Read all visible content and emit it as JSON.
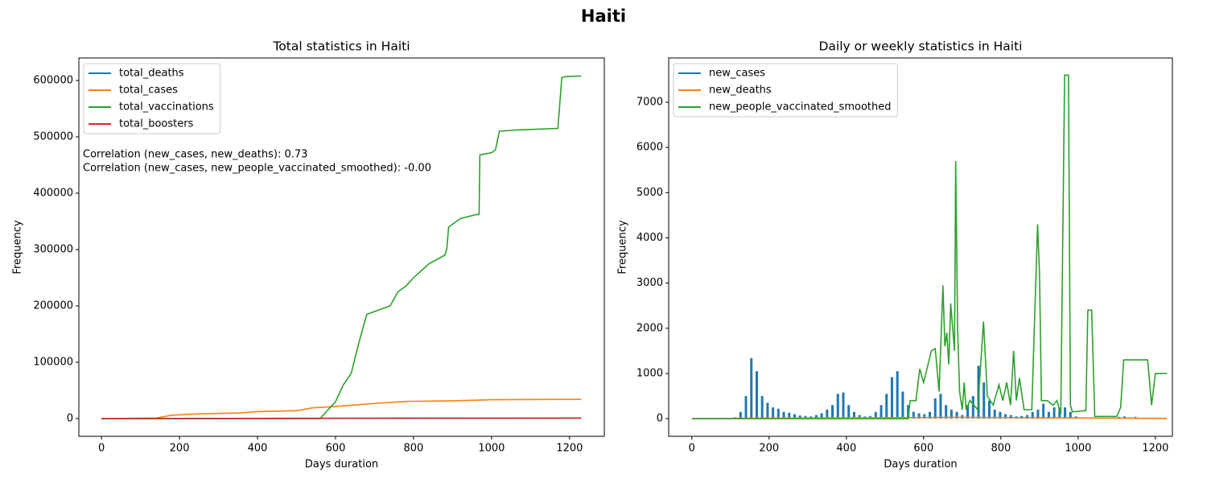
{
  "title": "Haiti",
  "chart_data": [
    {
      "type": "line",
      "title": "Total statistics in Haiti",
      "x_label": "Days duration",
      "y_label": "Frequency",
      "xlim": [
        -58,
        1289
      ],
      "ylim": [
        -31400,
        640000
      ],
      "xticks": [
        0,
        200,
        400,
        600,
        800,
        1000,
        1200
      ],
      "yticks": [
        0,
        100000,
        200000,
        300000,
        400000,
        500000,
        600000
      ],
      "grid": false,
      "legend": "upper-left",
      "annotations": [
        "Correlation (new_cases, new_deaths): 0.73",
        "Correlation (new_cases, new_people_vaccinated_smoothed): -0.00"
      ],
      "series": [
        {
          "name": "total_deaths",
          "color": "#1f77b4",
          "x": [
            0,
            200,
            600,
            800,
            1230
          ],
          "values": [
            0,
            200,
            500,
            780,
            860
          ]
        },
        {
          "name": "total_cases",
          "color": "#ff7f0e",
          "x": [
            0,
            140,
            180,
            250,
            350,
            400,
            500,
            540,
            600,
            700,
            780,
            900,
            1000,
            1230
          ],
          "values": [
            0,
            1000,
            6000,
            8500,
            10000,
            12500,
            14000,
            19000,
            21500,
            27000,
            30500,
            31500,
            33500,
            34200
          ]
        },
        {
          "name": "total_vaccinations",
          "color": "#2ca02c",
          "x": [
            0,
            560,
            580,
            600,
            620,
            640,
            660,
            670,
            680,
            720,
            740,
            760,
            780,
            800,
            840,
            880,
            885,
            890,
            920,
            960,
            968,
            970,
            1000,
            1010,
            1020,
            1060,
            1170,
            1180,
            1190,
            1230
          ],
          "values": [
            0,
            0,
            15000,
            30000,
            60000,
            80000,
            135000,
            160000,
            185000,
            195000,
            200000,
            225000,
            235000,
            250000,
            275000,
            290000,
            300000,
            340000,
            355000,
            362000,
            362000,
            468000,
            472000,
            477000,
            510000,
            512000,
            515000,
            605000,
            607000,
            608000
          ]
        },
        {
          "name": "total_boosters",
          "color": "#d62728",
          "x": [
            0,
            1230
          ],
          "values": [
            0,
            1000
          ]
        }
      ]
    },
    {
      "type": "line",
      "title": "Daily or weekly statistics in Haiti",
      "x_label": "Days duration",
      "y_label": "Frequency",
      "xlim": [
        -60,
        1244
      ],
      "ylim": [
        -390,
        7980
      ],
      "xticks": [
        0,
        200,
        400,
        600,
        800,
        1000,
        1200
      ],
      "yticks": [
        0,
        1000,
        2000,
        3000,
        4000,
        5000,
        6000,
        7000
      ],
      "grid": false,
      "legend": "upper-left",
      "series": [
        {
          "name": "new_cases",
          "color": "#1f77b4",
          "style": "spikes",
          "x": [
            112,
            126,
            140,
            154,
            168,
            182,
            196,
            210,
            224,
            238,
            252,
            266,
            280,
            294,
            308,
            322,
            336,
            350,
            364,
            378,
            392,
            406,
            420,
            434,
            448,
            462,
            476,
            490,
            504,
            518,
            532,
            546,
            560,
            574,
            588,
            602,
            616,
            630,
            644,
            658,
            672,
            686,
            700,
            714,
            728,
            742,
            756,
            770,
            784,
            798,
            812,
            826,
            840,
            854,
            868,
            882,
            896,
            910,
            924,
            938,
            952,
            966,
            980,
            994,
            1008,
            1022,
            1036,
            1050,
            1064,
            1078,
            1092,
            1106,
            1120,
            1134,
            1148
          ],
          "values": [
            30,
            150,
            500,
            1340,
            1050,
            500,
            350,
            250,
            220,
            150,
            130,
            100,
            70,
            60,
            50,
            80,
            120,
            200,
            300,
            550,
            580,
            300,
            150,
            80,
            50,
            60,
            150,
            300,
            550,
            920,
            1050,
            600,
            300,
            150,
            120,
            100,
            150,
            450,
            550,
            300,
            200,
            150,
            80,
            300,
            500,
            1170,
            800,
            400,
            200,
            150,
            100,
            80,
            50,
            60,
            80,
            150,
            200,
            330,
            150,
            250,
            240,
            250,
            150,
            50,
            30,
            20,
            10,
            5,
            10,
            5,
            30,
            40,
            50,
            30,
            40
          ]
        },
        {
          "name": "new_deaths",
          "color": "#ff7f0e",
          "x": [
            0,
            150,
            500,
            700,
            1230
          ],
          "values": [
            0,
            10,
            20,
            30,
            5
          ]
        },
        {
          "name": "new_people_vaccinated_smoothed",
          "color": "#2ca02c",
          "x": [
            0,
            560,
            565,
            580,
            590,
            600,
            610,
            620,
            630,
            640,
            650,
            655,
            660,
            665,
            670,
            680,
            683,
            688,
            693,
            700,
            705,
            710,
            720,
            740,
            755,
            765,
            780,
            795,
            805,
            815,
            825,
            833,
            840,
            848,
            860,
            880,
            895,
            900,
            905,
            920,
            935,
            945,
            955,
            965,
            975,
            980,
            985,
            1020,
            1025,
            1035,
            1043,
            1100,
            1110,
            1118,
            1180,
            1190,
            1200,
            1230
          ],
          "values": [
            0,
            0,
            400,
            400,
            1100,
            800,
            1150,
            1500,
            1550,
            600,
            2950,
            1600,
            1900,
            1200,
            2550,
            1500,
            5700,
            2000,
            600,
            200,
            800,
            200,
            400,
            200,
            2150,
            500,
            300,
            750,
            400,
            800,
            300,
            1500,
            400,
            900,
            200,
            200,
            4300,
            3200,
            400,
            400,
            300,
            400,
            100,
            7600,
            7600,
            300,
            150,
            180,
            2400,
            2400,
            50,
            50,
            250,
            1300,
            1300,
            300,
            1000,
            1000
          ]
        }
      ]
    }
  ]
}
